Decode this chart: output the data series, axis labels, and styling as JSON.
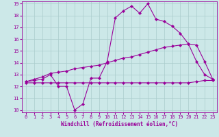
{
  "xlabel": "Windchill (Refroidissement éolien,°C)",
  "bg_color": "#cce8e8",
  "grid_color": "#aacccc",
  "line_color": "#990099",
  "xlim": [
    -0.5,
    23.5
  ],
  "ylim": [
    9.8,
    19.2
  ],
  "xticks": [
    0,
    1,
    2,
    3,
    4,
    5,
    6,
    7,
    8,
    9,
    10,
    11,
    12,
    13,
    14,
    15,
    16,
    17,
    18,
    19,
    20,
    21,
    22,
    23
  ],
  "yticks": [
    10,
    11,
    12,
    13,
    14,
    15,
    16,
    17,
    18,
    19
  ],
  "curve1_x": [
    0,
    1,
    2,
    3,
    4,
    5,
    6,
    7,
    8,
    9,
    10,
    11,
    12,
    13,
    14,
    15,
    16,
    17,
    18,
    19,
    20,
    21,
    22,
    23
  ],
  "curve1_y": [
    12.4,
    12.5,
    12.6,
    13.0,
    12.0,
    12.0,
    10.0,
    10.5,
    12.7,
    12.7,
    14.1,
    17.8,
    18.4,
    18.8,
    18.2,
    19.0,
    17.7,
    17.5,
    17.1,
    16.5,
    15.6,
    14.1,
    13.0,
    12.6
  ],
  "curve2_x": [
    0,
    1,
    2,
    3,
    4,
    5,
    6,
    7,
    8,
    9,
    10,
    11,
    12,
    13,
    14,
    15,
    16,
    17,
    18,
    19,
    20,
    21,
    22,
    23
  ],
  "curve2_y": [
    12.4,
    12.6,
    12.8,
    13.1,
    13.2,
    13.3,
    13.5,
    13.6,
    13.7,
    13.8,
    14.0,
    14.2,
    14.4,
    14.5,
    14.7,
    14.9,
    15.1,
    15.3,
    15.4,
    15.5,
    15.6,
    15.5,
    14.1,
    12.6
  ],
  "curve3_x": [
    0,
    1,
    2,
    3,
    4,
    5,
    6,
    7,
    8,
    9,
    10,
    11,
    12,
    13,
    14,
    15,
    16,
    17,
    18,
    19,
    20,
    21,
    22,
    23
  ],
  "curve3_y": [
    12.3,
    12.3,
    12.3,
    12.3,
    12.3,
    12.3,
    12.3,
    12.3,
    12.3,
    12.3,
    12.3,
    12.3,
    12.3,
    12.3,
    12.3,
    12.3,
    12.3,
    12.3,
    12.3,
    12.3,
    12.3,
    12.4,
    12.5,
    12.5
  ]
}
